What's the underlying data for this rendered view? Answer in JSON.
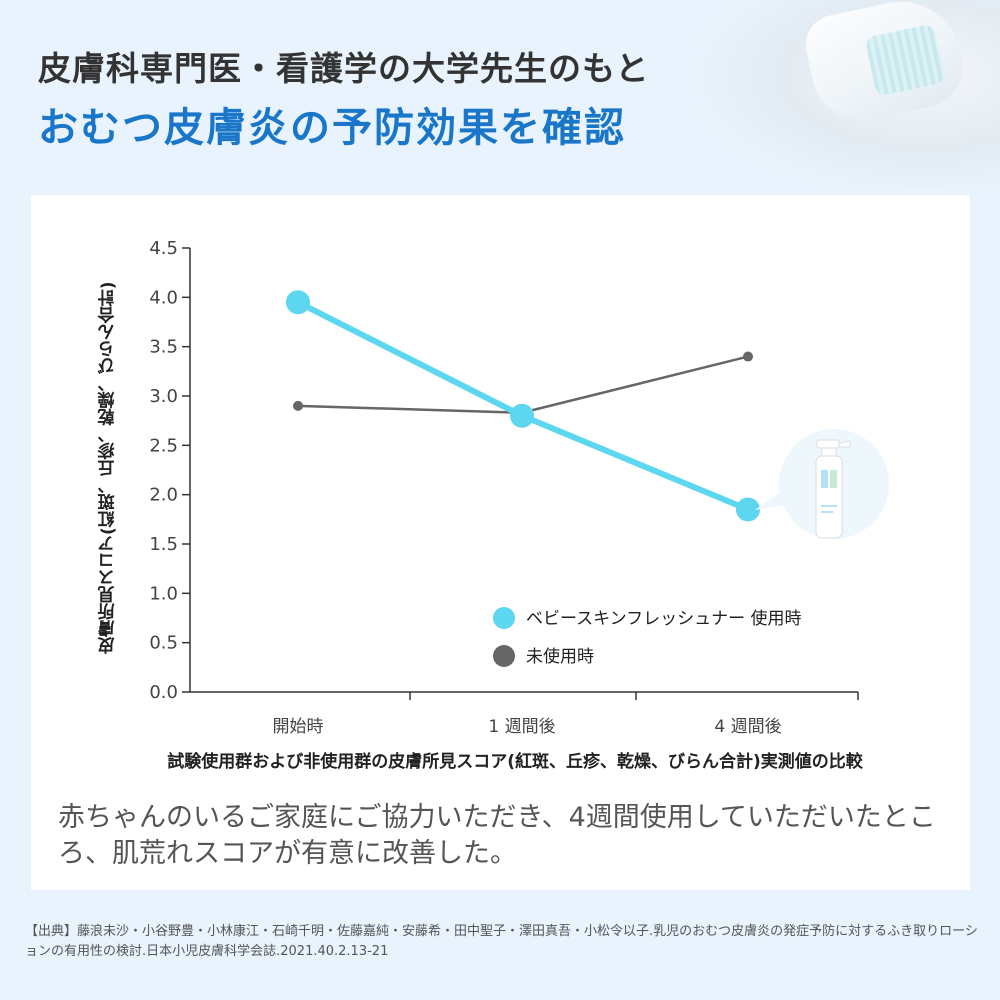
{
  "header": {
    "title_line1": "皮膚科専門医・看護学の大学先生のもと",
    "title_line2": "おむつ皮膚炎の予防効果を確認"
  },
  "chart_data": {
    "type": "line",
    "categories": [
      "開始時",
      "1 週間後",
      "4 週間後"
    ],
    "ylabel": "皮膚所見スコア(紅斑、丘疹、乾燥、びらん合計)",
    "xlabel": "試験使用群および非使用群の皮膚所見スコア(紅斑、丘疹、乾燥、びらん合計)実測値の比較",
    "ylim": [
      0,
      4.5
    ],
    "yticks": [
      "0.0",
      "0.5",
      "1.0",
      "1.5",
      "2.0",
      "2.5",
      "3.0",
      "3.5",
      "4.0",
      "4.5"
    ],
    "grid": false,
    "legend_position": "bottom-right",
    "series": [
      {
        "name": "ベビースキンフレッシュナー 使用時",
        "values": [
          3.95,
          2.8,
          1.85
        ],
        "color": "#5dd6ef"
      },
      {
        "name": "未使用時",
        "values": [
          2.9,
          2.83,
          3.4
        ],
        "color": "#666666"
      }
    ]
  },
  "caption": "赤ちゃんのいるご家庭にご協力いただき、4週間使用していただいたところ、肌荒れスコアが有意に改善した。",
  "source": "【出典】藤浪未沙・小谷野豊・小林康江・石崎千明・佐藤嘉純・安藤希・田中聖子・澤田真吾・小松令以子.乳児のおむつ皮膚炎の発症予防に対するふき取りローションの有用性の検討.日本小児皮膚科学会誌.2021.40.2.13-21",
  "icons": {
    "product": "spray-bottle-icon"
  },
  "colors": {
    "title_accent": "#1976c9",
    "background": "#e8f3fd"
  }
}
